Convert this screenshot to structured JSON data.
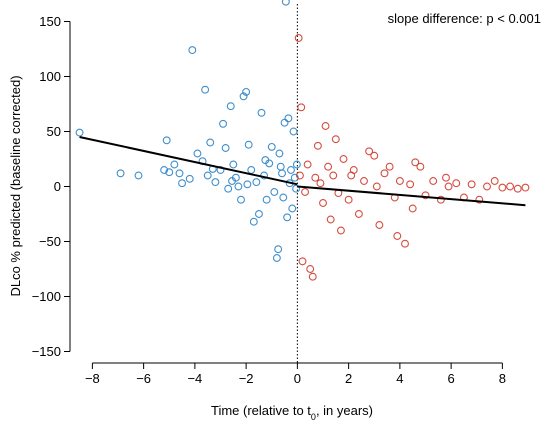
{
  "chart_data": {
    "type": "scatter",
    "annotation": "slope difference: p < 0.001",
    "xlabel_main": "Time (relative to t",
    "xlabel_sub": "0",
    "xlabel_tail": ", in years)",
    "ylabel": "DLco % predicted (baseline corrected)",
    "xlim": [
      -8.6,
      9.0
    ],
    "ylim": [
      -155,
      165
    ],
    "xticks": [
      -8,
      -6,
      -4,
      -2,
      0,
      2,
      4,
      6,
      8
    ],
    "xtick_labels": [
      "−8",
      "−6",
      "−4",
      "−2",
      "0",
      "2",
      "4",
      "6",
      "8"
    ],
    "yticks": [
      150,
      100,
      50,
      0,
      -50,
      -100,
      -150
    ],
    "ytick_labels": [
      "150",
      "100",
      "50",
      "0",
      "−50",
      "−100",
      "−150"
    ],
    "vline_x": 0,
    "colors": {
      "before": "#2b83c6",
      "after": "#d23a2a",
      "trend": "#000000"
    },
    "trend_lines": [
      {
        "x": [
          -8.5,
          0
        ],
        "y": [
          45,
          2
        ]
      },
      {
        "x": [
          0,
          8.9
        ],
        "y": [
          0,
          -17
        ]
      }
    ],
    "series": [
      {
        "points": [
          [
            -8.5,
            49
          ],
          [
            -6.9,
            12
          ],
          [
            -6.2,
            10
          ],
          [
            -5.2,
            15
          ],
          [
            -5.1,
            42
          ],
          [
            -5.0,
            13
          ],
          [
            -4.8,
            20
          ],
          [
            -4.5,
            3
          ],
          [
            -4.2,
            7
          ],
          [
            -4.1,
            124
          ],
          [
            -3.9,
            30
          ],
          [
            -3.7,
            23
          ],
          [
            -3.6,
            88
          ],
          [
            -3.5,
            10
          ],
          [
            -3.4,
            40
          ],
          [
            -3.2,
            4
          ],
          [
            -3.0,
            15
          ],
          [
            -2.9,
            57
          ],
          [
            -2.8,
            35
          ],
          [
            -2.7,
            -2
          ],
          [
            -2.6,
            73
          ],
          [
            -2.5,
            20
          ],
          [
            -2.4,
            8
          ],
          [
            -2.3,
            0
          ],
          [
            -2.2,
            -12
          ],
          [
            -2.1,
            82
          ],
          [
            -2.0,
            86
          ],
          [
            -1.9,
            38
          ],
          [
            -1.8,
            15
          ],
          [
            -1.7,
            -32
          ],
          [
            -1.6,
            4
          ],
          [
            -1.5,
            -25
          ],
          [
            -1.4,
            67
          ],
          [
            -1.3,
            10
          ],
          [
            -1.2,
            -12
          ],
          [
            -1.1,
            21
          ],
          [
            -1.0,
            36
          ],
          [
            -0.9,
            -5
          ],
          [
            -0.8,
            -65
          ],
          [
            -0.75,
            -57
          ],
          [
            -0.7,
            30
          ],
          [
            -0.6,
            12
          ],
          [
            -0.5,
            58
          ],
          [
            -0.45,
            168
          ],
          [
            -0.4,
            -28
          ],
          [
            -0.35,
            62
          ],
          [
            -0.3,
            3
          ],
          [
            -0.25,
            15
          ],
          [
            -0.2,
            -20
          ],
          [
            -0.15,
            50
          ],
          [
            -0.1,
            8
          ],
          [
            -0.05,
            -2
          ],
          [
            -4.6,
            12
          ],
          [
            -3.3,
            16
          ],
          [
            -2.55,
            5
          ],
          [
            -1.95,
            2
          ],
          [
            -1.25,
            24
          ],
          [
            -0.65,
            18
          ],
          [
            -0.55,
            -10
          ],
          [
            -0.02,
            20
          ]
        ]
      },
      {
        "points": [
          [
            0.05,
            135
          ],
          [
            0.1,
            10
          ],
          [
            0.15,
            72
          ],
          [
            0.2,
            -68
          ],
          [
            0.3,
            -5
          ],
          [
            0.4,
            20
          ],
          [
            0.5,
            -75
          ],
          [
            0.6,
            -82
          ],
          [
            0.7,
            8
          ],
          [
            0.8,
            37
          ],
          [
            0.9,
            3
          ],
          [
            1.0,
            -15
          ],
          [
            1.1,
            55
          ],
          [
            1.2,
            18
          ],
          [
            1.3,
            -30
          ],
          [
            1.4,
            10
          ],
          [
            1.5,
            43
          ],
          [
            1.6,
            -6
          ],
          [
            1.8,
            25
          ],
          [
            2.0,
            -12
          ],
          [
            2.2,
            15
          ],
          [
            2.4,
            -25
          ],
          [
            2.6,
            5
          ],
          [
            2.8,
            32
          ],
          [
            3.0,
            28
          ],
          [
            3.2,
            -35
          ],
          [
            3.4,
            12
          ],
          [
            3.6,
            18
          ],
          [
            3.8,
            -10
          ],
          [
            3.9,
            -45
          ],
          [
            4.0,
            5
          ],
          [
            4.2,
            -52
          ],
          [
            4.4,
            2
          ],
          [
            4.6,
            22
          ],
          [
            4.8,
            18
          ],
          [
            5.0,
            -8
          ],
          [
            5.3,
            5
          ],
          [
            5.6,
            -12
          ],
          [
            5.9,
            0
          ],
          [
            6.2,
            3
          ],
          [
            6.5,
            -10
          ],
          [
            6.8,
            2
          ],
          [
            7.1,
            -12
          ],
          [
            7.4,
            0
          ],
          [
            7.7,
            5
          ],
          [
            8.0,
            -1
          ],
          [
            8.3,
            0
          ],
          [
            8.6,
            -2
          ],
          [
            8.9,
            -1
          ],
          [
            2.1,
            10
          ],
          [
            4.5,
            -20
          ],
          [
            1.7,
            -40
          ],
          [
            3.1,
            0
          ],
          [
            5.8,
            8
          ]
        ]
      }
    ]
  }
}
